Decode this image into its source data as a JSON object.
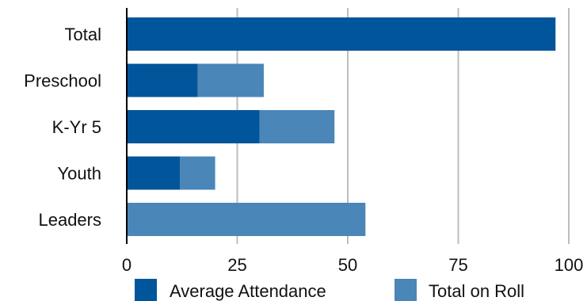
{
  "chart_data": {
    "type": "bar",
    "orientation": "horizontal",
    "stacked": "overlay",
    "categories": [
      "Total",
      "Preschool",
      "K-Yr 5",
      "Youth",
      "Leaders"
    ],
    "series": [
      {
        "name": "Total on Roll",
        "color": "#4a86b8",
        "values": [
          null,
          31,
          47,
          20,
          54
        ]
      },
      {
        "name": "Average Attendance",
        "color": "#01559a",
        "values": [
          97,
          16,
          30,
          12,
          null
        ]
      }
    ],
    "legend_order": [
      "Average Attendance",
      "Total on Roll"
    ],
    "xticks": [
      0,
      25,
      50,
      75,
      100
    ],
    "xlim": [
      0,
      100
    ],
    "grid": "vertical",
    "legend_placement": "bottom",
    "title": "",
    "xlabel": "",
    "ylabel": ""
  }
}
